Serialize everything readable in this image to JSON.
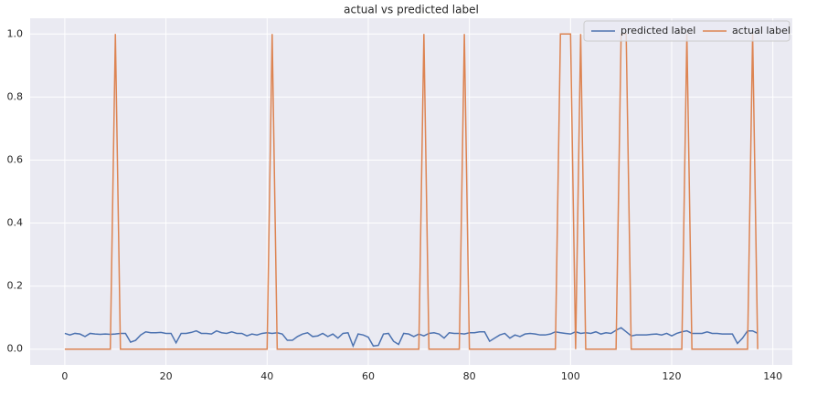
{
  "chart_data": {
    "type": "line",
    "title": "actual vs predicted label",
    "x": [
      0,
      1,
      2,
      3,
      4,
      5,
      6,
      7,
      8,
      9,
      10,
      11,
      12,
      13,
      14,
      15,
      16,
      17,
      18,
      19,
      20,
      21,
      22,
      23,
      24,
      25,
      26,
      27,
      28,
      29,
      30,
      31,
      32,
      33,
      34,
      35,
      36,
      37,
      38,
      39,
      40,
      41,
      42,
      43,
      44,
      45,
      46,
      47,
      48,
      49,
      50,
      51,
      52,
      53,
      54,
      55,
      56,
      57,
      58,
      59,
      60,
      61,
      62,
      63,
      64,
      65,
      66,
      67,
      68,
      69,
      70,
      71,
      72,
      73,
      74,
      75,
      76,
      77,
      78,
      79,
      80,
      81,
      82,
      83,
      84,
      85,
      86,
      87,
      88,
      89,
      90,
      91,
      92,
      93,
      94,
      95,
      96,
      97,
      98,
      99,
      100,
      101,
      102,
      103,
      104,
      105,
      106,
      107,
      108,
      109,
      110,
      111,
      112,
      113,
      114,
      115,
      116,
      117,
      118,
      119,
      120,
      121,
      122,
      123,
      124,
      125,
      126,
      127,
      128,
      129,
      130,
      131,
      132,
      133,
      134,
      135,
      136,
      137
    ],
    "series": [
      {
        "name": "predicted label",
        "color": "#4c72b0",
        "values": [
          0.05,
          0.045,
          0.05,
          0.048,
          0.04,
          0.05,
          0.048,
          0.047,
          0.048,
          0.047,
          0.048,
          0.05,
          0.05,
          0.022,
          0.028,
          0.045,
          0.055,
          0.052,
          0.052,
          0.053,
          0.05,
          0.05,
          0.02,
          0.05,
          0.05,
          0.053,
          0.058,
          0.05,
          0.05,
          0.048,
          0.058,
          0.052,
          0.05,
          0.055,
          0.05,
          0.05,
          0.042,
          0.048,
          0.045,
          0.05,
          0.052,
          0.05,
          0.052,
          0.048,
          0.028,
          0.028,
          0.04,
          0.048,
          0.052,
          0.04,
          0.042,
          0.05,
          0.04,
          0.048,
          0.035,
          0.05,
          0.052,
          0.01,
          0.048,
          0.045,
          0.038,
          0.01,
          0.012,
          0.048,
          0.05,
          0.025,
          0.015,
          0.05,
          0.048,
          0.04,
          0.048,
          0.042,
          0.05,
          0.052,
          0.048,
          0.035,
          0.052,
          0.05,
          0.05,
          0.048,
          0.052,
          0.052,
          0.055,
          0.055,
          0.025,
          0.035,
          0.045,
          0.05,
          0.035,
          0.045,
          0.04,
          0.048,
          0.05,
          0.048,
          0.045,
          0.045,
          0.048,
          0.055,
          0.052,
          0.05,
          0.048,
          0.055,
          0.05,
          0.052,
          0.05,
          0.055,
          0.048,
          0.052,
          0.05,
          0.06,
          0.068,
          0.055,
          0.042,
          0.045,
          0.045,
          0.045,
          0.047,
          0.048,
          0.045,
          0.05,
          0.042,
          0.05,
          0.055,
          0.058,
          0.05,
          0.05,
          0.05,
          0.055,
          0.05,
          0.05,
          0.048,
          0.048,
          0.048,
          0.018,
          0.035,
          0.058,
          0.058,
          0.05
        ]
      },
      {
        "name": "actual label",
        "color": "#dd8452",
        "values": [
          0,
          0,
          0,
          0,
          0,
          0,
          0,
          0,
          0,
          0,
          1,
          0,
          0,
          0,
          0,
          0,
          0,
          0,
          0,
          0,
          0,
          0,
          0,
          0,
          0,
          0,
          0,
          0,
          0,
          0,
          0,
          0,
          0,
          0,
          0,
          0,
          0,
          0,
          0,
          0,
          0,
          1,
          0,
          0,
          0,
          0,
          0,
          0,
          0,
          0,
          0,
          0,
          0,
          0,
          0,
          0,
          0,
          0,
          0,
          0,
          0,
          0,
          0,
          0,
          0,
          0,
          0,
          0,
          0,
          0,
          0,
          1,
          0,
          0,
          0,
          0,
          0,
          0,
          0,
          1,
          0,
          0,
          0,
          0,
          0,
          0,
          0,
          0,
          0,
          0,
          0,
          0,
          0,
          0,
          0,
          0,
          0,
          0,
          1,
          1,
          1,
          0,
          1,
          0,
          0,
          0,
          0,
          0,
          0,
          0,
          1,
          1,
          0,
          0,
          0,
          0,
          0,
          0,
          0,
          0,
          0,
          0,
          0,
          1,
          0,
          0,
          0,
          0,
          0,
          0,
          0,
          0,
          0,
          0,
          0,
          0,
          1,
          0
        ]
      }
    ],
    "xlim": [
      -6.85,
      143.85
    ],
    "xticks": [
      0,
      20,
      40,
      60,
      80,
      100,
      120,
      140
    ],
    "ylim": [
      -0.05,
      1.05
    ],
    "yticks": [
      {
        "value": 0,
        "label": "0.0"
      },
      0.2,
      0.4,
      0.6,
      0.8,
      {
        "value": 1,
        "label": "1.0"
      }
    ],
    "grid": true,
    "legend": "upper right"
  }
}
